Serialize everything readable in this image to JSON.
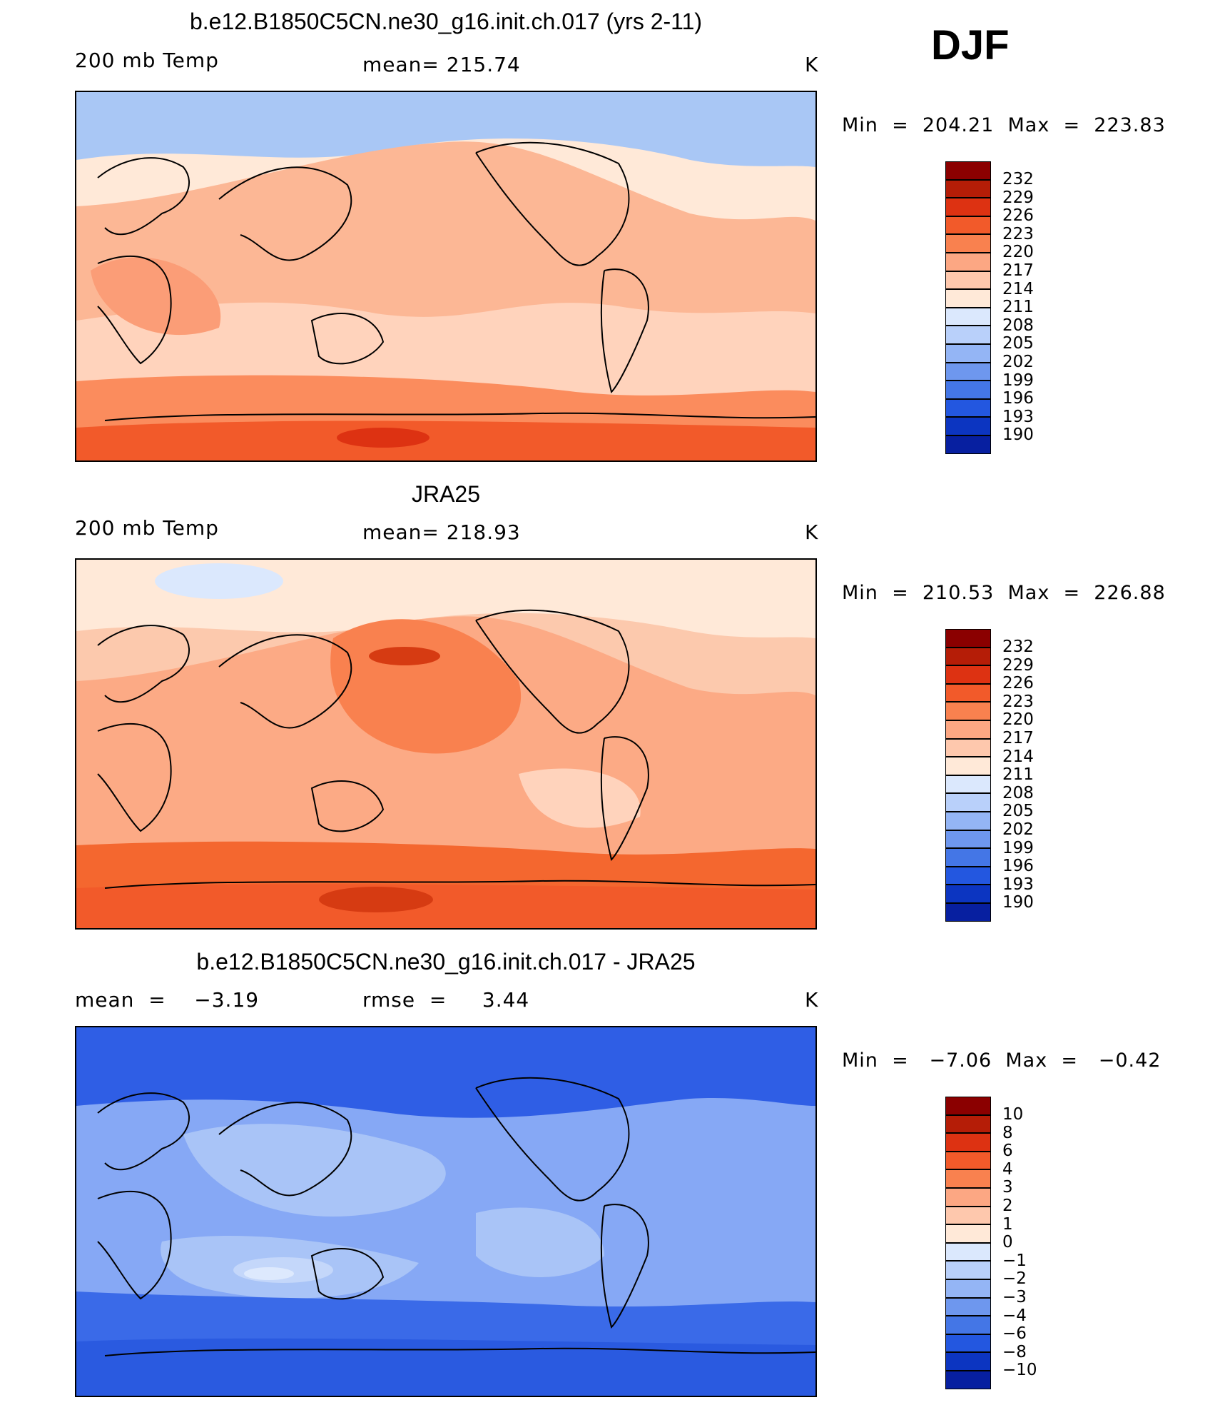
{
  "season_label": "DJF",
  "panels": [
    {
      "title": "b.e12.B1850C5CN.ne30_g16.init.ch.017 (yrs 2-11)",
      "left_label": "200 mb Temp",
      "center_label": "mean=  215.74",
      "units": "K",
      "minmax": "Min  =  204.21  Max  =  223.83",
      "colorbar_labels": [
        "232",
        "229",
        "226",
        "223",
        "220",
        "217",
        "214",
        "211",
        "208",
        "205",
        "202",
        "199",
        "196",
        "193",
        "190"
      ],
      "bands": {
        "arctic": "#a9c7f5",
        "north": "#ffe9d8",
        "tropics": "#fcb795",
        "south": "#ffd3bc",
        "southern_ocean": "#fb8c5d",
        "antarctic": "#f25a2a",
        "blob1": "#fb9d77",
        "blob2": "#dd3212"
      }
    },
    {
      "title": "JRA25",
      "left_label": "200 mb Temp",
      "center_label": "mean=  218.93",
      "units": "K",
      "minmax": "Min  =  210.53  Max  =  226.88",
      "colorbar_labels": [
        "232",
        "229",
        "226",
        "223",
        "220",
        "217",
        "214",
        "211",
        "208",
        "205",
        "202",
        "199",
        "196",
        "193",
        "190"
      ],
      "bands": {
        "arctic": "#ffe9d8",
        "north": "#fcc9ad",
        "tropics": "#fcaa85",
        "south": "#ffd3bc",
        "southern_ocean": "#f4672f",
        "antarctic": "#f25a2a",
        "blob1": "#f9814f",
        "blob2": "#d63b12"
      }
    },
    {
      "title": "b.e12.B1850C5CN.ne30_g16.init.ch.017 - JRA25",
      "left_label": "mean  =    −3.19",
      "center_label": "rmse  =     3.44",
      "units": "K",
      "minmax": "Min  =   −7.06  Max  =   −0.42",
      "colorbar_labels": [
        "10",
        "8",
        "6",
        "4",
        "3",
        "2",
        "1",
        "0",
        "−1",
        "−2",
        "−3",
        "−4",
        "−6",
        "−8",
        "−10"
      ],
      "bands": {
        "arctic": "#2f5ee5",
        "north": "#86a8f5",
        "tropics": "#a9c4f7",
        "south": "#8aabf6",
        "southern_ocean": "#3a6ae8",
        "antarctic": "#2a5ae0",
        "blob1": "#c4d7fa",
        "blob2": "#dde9fd"
      }
    }
  ],
  "colorbar_colors": [
    "#8b0000",
    "#b51d07",
    "#dd3212",
    "#f25a2a",
    "#f9814f",
    "#fca783",
    "#fec8ad",
    "#ffe9d8",
    "#dbe8fd",
    "#b9d0fa",
    "#94b5f5",
    "#6e97ee",
    "#4476e6",
    "#2357e0",
    "#0c35c1",
    "#071fa0",
    "#000080"
  ]
}
